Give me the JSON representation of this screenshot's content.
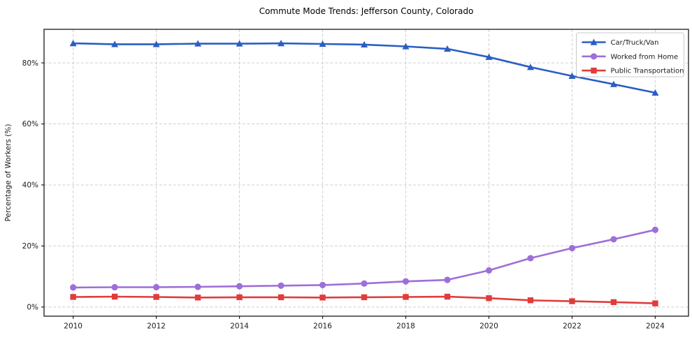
{
  "title": "Commute Mode Trends: Jefferson County, Colorado",
  "chart_data": {
    "type": "line",
    "title": "Commute Mode Trends: Jefferson County, Colorado",
    "xlabel": "",
    "ylabel": "Percentage of Workers (%)",
    "x": [
      2010,
      2011,
      2012,
      2013,
      2014,
      2015,
      2016,
      2017,
      2018,
      2019,
      2020,
      2021,
      2022,
      2023,
      2024
    ],
    "xticks": [
      2010,
      2012,
      2014,
      2016,
      2018,
      2020,
      2022,
      2024
    ],
    "yticks": [
      0,
      20,
      40,
      60,
      80
    ],
    "ytick_suffix": "%",
    "xlim": [
      2009.3,
      2024.8
    ],
    "ylim": [
      -3,
      91
    ],
    "grid": true,
    "grid_style": "dashed",
    "legend_position": "upper-right",
    "series": [
      {
        "name": "Car/Truck/Van",
        "color": "#2a5ec4",
        "marker": "triangle",
        "values": [
          86.4,
          86.1,
          86.1,
          86.3,
          86.3,
          86.4,
          86.2,
          86.0,
          85.4,
          84.6,
          81.9,
          78.6,
          75.7,
          73.0,
          70.2
        ]
      },
      {
        "name": "Worked from Home",
        "color": "#9d6fd8",
        "marker": "circle",
        "values": [
          6.4,
          6.5,
          6.5,
          6.6,
          6.8,
          7.0,
          7.2,
          7.7,
          8.4,
          8.9,
          12.0,
          16.0,
          19.3,
          22.2,
          25.3
        ]
      },
      {
        "name": "Public Transportation",
        "color": "#e03c3c",
        "marker": "square",
        "values": [
          3.3,
          3.4,
          3.3,
          3.1,
          3.2,
          3.2,
          3.1,
          3.2,
          3.3,
          3.4,
          2.9,
          2.2,
          1.9,
          1.6,
          1.2
        ]
      }
    ]
  }
}
